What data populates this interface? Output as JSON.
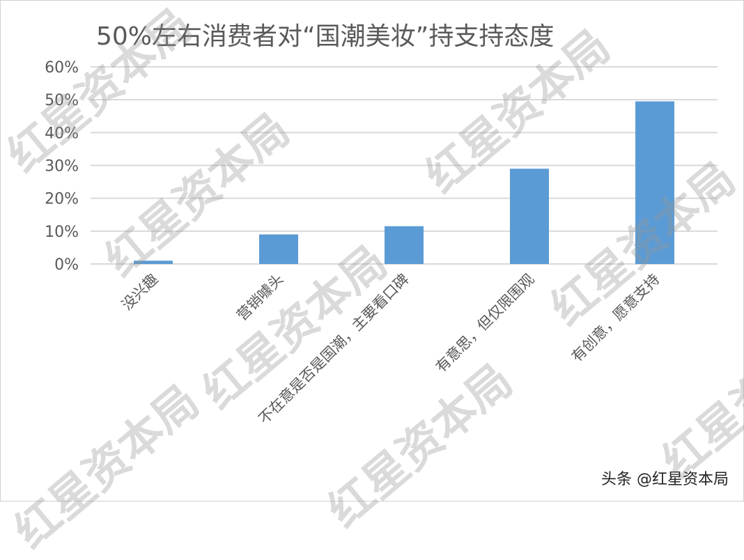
{
  "chart_data": {
    "type": "bar",
    "title": "50%左右消费者对“国潮美妆”持支持态度",
    "categories": [
      "没兴趣",
      "营销噱头",
      "不在意是否是国潮，主要看口碑",
      "有意思，但仅限围观",
      "有创意，愿意支持"
    ],
    "values": [
      1,
      9,
      11.5,
      29,
      49.5
    ],
    "ylim": [
      0,
      60
    ],
    "yticks": [
      "0%",
      "10%",
      "20%",
      "30%",
      "40%",
      "50%",
      "60%"
    ],
    "xlabel": "",
    "ylabel": "",
    "grid": true,
    "bar_color": "#5b9bd5",
    "grid_color": "#d9d9d9"
  },
  "watermark": "红星资本局",
  "footer": "头条 @红星资本局"
}
